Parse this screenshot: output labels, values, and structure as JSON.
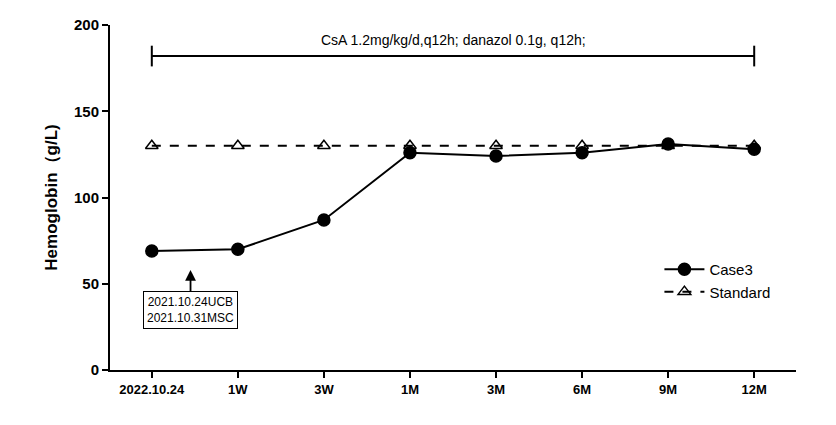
{
  "chart_data": {
    "type": "line",
    "y_label": "Hemoglobin（g/L)",
    "categories": [
      "2022.10.24",
      "1W",
      "3W",
      "1M",
      "3M",
      "6M",
      "9M",
      "12M"
    ],
    "series": [
      {
        "name": "Case3",
        "color": "#000000",
        "marker": "circle",
        "line_style": "solid",
        "values": [
          69,
          70,
          87,
          126,
          124,
          126,
          131,
          128
        ]
      },
      {
        "name": "Standard",
        "color": "#000000",
        "marker": "triangle-open",
        "line_style": "dashed",
        "values": [
          130,
          130,
          130,
          130,
          130,
          130,
          130,
          130
        ]
      }
    ],
    "ylim": [
      0,
      200
    ],
    "yticks": [
      0,
      50,
      100,
      150,
      200
    ],
    "grid": false,
    "legend": "lower right",
    "annotations": [
      "CsA 1.2mg/kg/d,q12h; danazol 0.1g, q12h;",
      "2021.10.24UCB\n2021.10.31MSC"
    ]
  }
}
